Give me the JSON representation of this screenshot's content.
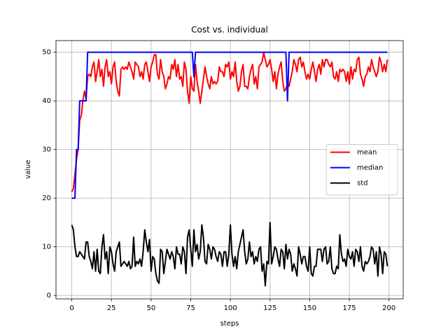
{
  "chart_data": {
    "type": "line",
    "title": "Cost vs. individual",
    "xlabel": "steps",
    "ylabel": "value",
    "x": [
      0,
      1,
      2,
      3,
      4,
      5,
      6,
      7,
      8,
      9,
      10,
      11,
      12,
      13,
      14,
      15,
      16,
      17,
      18,
      19,
      20,
      21,
      22,
      23,
      24,
      25,
      26,
      27,
      28,
      29,
      30,
      31,
      32,
      33,
      34,
      35,
      36,
      37,
      38,
      39,
      40,
      41,
      42,
      43,
      44,
      45,
      46,
      47,
      48,
      49,
      50,
      51,
      52,
      53,
      54,
      55,
      56,
      57,
      58,
      59,
      60,
      61,
      62,
      63,
      64,
      65,
      66,
      67,
      68,
      69,
      70,
      71,
      72,
      73,
      74,
      75,
      76,
      77,
      78,
      79,
      80,
      81,
      82,
      83,
      84,
      85,
      86,
      87,
      88,
      89,
      90,
      91,
      92,
      93,
      94,
      95,
      96,
      97,
      98,
      99,
      100,
      101,
      102,
      103,
      104,
      105,
      106,
      107,
      108,
      109,
      110,
      111,
      112,
      113,
      114,
      115,
      116,
      117,
      118,
      119,
      120,
      121,
      122,
      123,
      124,
      125,
      126,
      127,
      128,
      129,
      130,
      131,
      132,
      133,
      134,
      135,
      136,
      137,
      138,
      139,
      140,
      141,
      142,
      143,
      144,
      145,
      146,
      147,
      148,
      149,
      150,
      151,
      152,
      153,
      154,
      155,
      156,
      157,
      158,
      159,
      160,
      161,
      162,
      163,
      164,
      165,
      166,
      167,
      168,
      169,
      170,
      171,
      172,
      173,
      174,
      175,
      176,
      177,
      178,
      179,
      180,
      181,
      182,
      183,
      184,
      185,
      186,
      187,
      188,
      189,
      190,
      191,
      192,
      193,
      194,
      195,
      196,
      197,
      198,
      199
    ],
    "series": [
      {
        "name": "mean",
        "color": "#ff0000",
        "values": [
          21.3,
          22,
          25,
          28,
          30,
          36,
          37,
          40,
          42,
          40.5,
          45,
          45.5,
          45,
          47,
          48,
          44,
          46,
          48.5,
          45,
          46.5,
          43,
          47,
          48.5,
          45,
          46,
          43.5,
          47,
          48,
          44,
          42,
          41,
          46.5,
          47,
          46.5,
          47,
          46.5,
          48,
          47,
          46,
          44.5,
          48,
          47.5,
          47,
          45,
          46,
          44.5,
          47.5,
          48,
          46,
          44,
          47,
          48,
          49.5,
          49.5,
          45.5,
          44.5,
          48.5,
          46,
          45,
          42.5,
          43.5,
          45,
          44.5,
          47.5,
          46.5,
          48.5,
          45,
          47.5,
          44.5,
          45,
          43,
          48,
          46.5,
          42,
          39.5,
          45,
          42.5,
          42,
          47.5,
          44,
          42,
          39.5,
          42,
          44.5,
          47,
          45,
          43.5,
          42.5,
          45,
          43.5,
          44,
          43.5,
          44,
          47,
          46,
          46,
          45,
          47.5,
          47,
          48,
          44.5,
          46,
          45,
          48,
          44,
          42,
          43,
          46,
          47.5,
          43,
          43,
          42.5,
          45,
          46.5,
          47.5,
          43.5,
          45,
          42.5,
          47,
          47.5,
          48,
          50,
          48.5,
          47,
          47.5,
          48.5,
          46.5,
          44,
          46,
          42.5,
          45.5,
          47,
          48,
          44,
          42,
          42.5,
          43.5,
          43,
          44.5,
          46,
          48.5,
          47.5,
          46,
          48.5,
          49,
          47,
          48,
          46,
          44.5,
          45.5,
          44.5,
          46.5,
          48,
          46,
          44,
          46.5,
          47.5,
          45.5,
          48.5,
          47,
          48.5,
          48.5,
          47.5,
          47,
          48,
          45,
          44.5,
          46,
          44,
          46.5,
          46,
          46.5,
          46,
          44,
          46,
          43.5,
          47,
          44.5,
          46.5,
          46,
          48.5,
          49,
          45.5,
          44.5,
          43,
          45,
          45.5,
          47,
          46,
          48.5,
          47,
          46,
          45,
          46,
          49,
          48,
          46,
          47.5,
          46,
          48.5
        ]
      },
      {
        "name": "median",
        "color": "#0000ff",
        "values": [
          20,
          20,
          20,
          30,
          30,
          40,
          40,
          40,
          40,
          40,
          50,
          50,
          50,
          50,
          50,
          50,
          50,
          50,
          50,
          50,
          50,
          50,
          50,
          50,
          50,
          50,
          50,
          50,
          50,
          50,
          50,
          50,
          50,
          50,
          50,
          50,
          50,
          50,
          50,
          50,
          50,
          50,
          50,
          50,
          50,
          50,
          50,
          50,
          50,
          50,
          50,
          50,
          50,
          50,
          50,
          50,
          50,
          50,
          50,
          50,
          50,
          50,
          50,
          50,
          50,
          50,
          50,
          50,
          50,
          50,
          50,
          50,
          50,
          50,
          50,
          50,
          50,
          45,
          50,
          50,
          50,
          50,
          50,
          50,
          50,
          50,
          50,
          50,
          50,
          50,
          50,
          50,
          50,
          50,
          50,
          50,
          50,
          50,
          50,
          50,
          50,
          50,
          50,
          50,
          50,
          50,
          50,
          50,
          50,
          50,
          50,
          50,
          50,
          50,
          50,
          50,
          50,
          50,
          50,
          50,
          50,
          50,
          50,
          50,
          50,
          50,
          50,
          50,
          50,
          50,
          50,
          50,
          50,
          50,
          50,
          50,
          40,
          50,
          50,
          50,
          50,
          50,
          50,
          50,
          50,
          50,
          50,
          50,
          50,
          50,
          50,
          50,
          50,
          50,
          50,
          50,
          50,
          50,
          50,
          50,
          50,
          50,
          50,
          50,
          50,
          50,
          50,
          50,
          50,
          50,
          50,
          50,
          50,
          50,
          50,
          50,
          50,
          50,
          50,
          50,
          50,
          50,
          50,
          50,
          50,
          50,
          50,
          50,
          50,
          50,
          50,
          50,
          50,
          50,
          50,
          50,
          50,
          50,
          50,
          50
        ]
      },
      {
        "name": "std",
        "color": "#000000",
        "values": [
          14.5,
          13.5,
          10,
          8,
          8,
          9,
          8.5,
          8,
          7.5,
          11,
          11,
          8,
          7,
          5.5,
          9,
          5,
          9.5,
          5,
          4.5,
          10,
          12.5,
          7.5,
          9,
          4.5,
          10,
          9,
          6.5,
          5,
          9,
          10,
          11,
          6,
          6.5,
          7,
          6.5,
          6,
          7,
          5.5,
          6,
          12,
          6,
          7,
          6.5,
          7.5,
          6,
          9,
          13.5,
          11,
          9,
          11.5,
          5,
          8,
          7.5,
          4.5,
          3,
          2.5,
          9.5,
          9,
          4.5,
          7,
          9.5,
          8.5,
          7.5,
          9,
          8,
          5.5,
          10,
          8.5,
          8.5,
          6.5,
          10,
          9,
          4.5,
          12,
          13.5,
          9.5,
          6,
          13.5,
          9,
          10.5,
          7.5,
          9,
          14.5,
          12,
          7,
          6.5,
          10.5,
          9.5,
          7.5,
          10,
          9.5,
          8,
          7,
          9,
          8.5,
          6,
          9,
          9,
          6,
          8.5,
          14.5,
          8.5,
          6,
          8,
          5.5,
          9,
          10.5,
          12,
          13.5,
          9,
          6.5,
          7.5,
          11,
          8,
          9,
          6.5,
          8,
          7,
          9.5,
          10,
          5,
          6.5,
          2,
          7,
          6.5,
          15,
          6.5,
          8,
          10,
          9.5,
          7.5,
          6,
          9.5,
          9,
          5.5,
          10.5,
          7.5,
          9.5,
          8.5,
          5,
          6.5,
          5.5,
          4,
          10,
          8.5,
          6.5,
          8,
          8,
          6,
          5,
          10,
          4.5,
          4,
          6,
          6,
          9.5,
          9.5,
          9.5,
          7,
          9.5,
          10,
          6.5,
          7,
          10,
          5.5,
          4.5,
          4.5,
          6,
          5.5,
          12.5,
          8.5,
          7,
          7.5,
          6,
          9.5,
          8,
          7.5,
          9,
          6,
          9.5,
          9,
          7,
          10,
          6,
          5,
          7,
          6.5,
          7,
          8,
          10,
          9.5,
          6.5,
          9,
          4,
          10,
          8.5,
          4.5,
          9,
          8.5,
          6
        ]
      }
    ],
    "xlim": [
      -9.95,
      208.95
    ],
    "ylim": [
      -0.7,
      52.4
    ],
    "xticks": [
      0,
      25,
      50,
      75,
      100,
      125,
      150,
      175,
      200
    ],
    "yticks": [
      0,
      10,
      20,
      30,
      40,
      50
    ],
    "grid": true,
    "legend": "center right"
  }
}
